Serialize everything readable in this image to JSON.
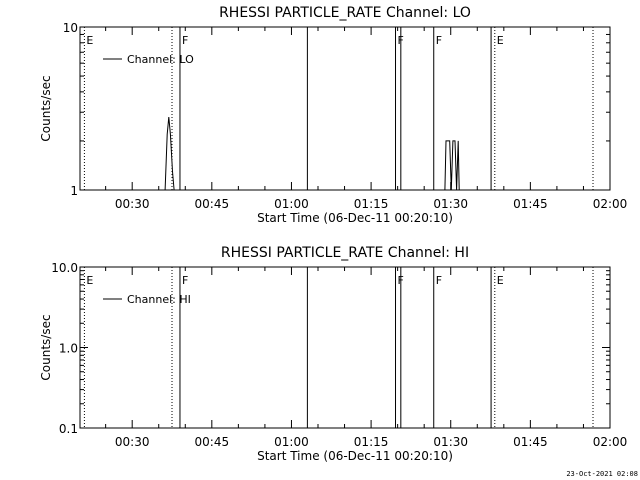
{
  "timestamp": "23-Oct-2021 02:08",
  "chart_data": [
    {
      "type": "line",
      "title": "RHESSI PARTICLE_RATE Channel: LO",
      "xlabel": "Start Time (06-Dec-11 00:20:10)",
      "ylabel": "Counts/sec",
      "yscale": "log",
      "ylim": [
        1,
        10
      ],
      "xlim_minutes": [
        20.17,
        120
      ],
      "ytick_values": [
        1,
        10
      ],
      "ytick_labels": [
        "1",
        "10"
      ],
      "xtick_values": [
        30,
        45,
        60,
        75,
        90,
        105,
        120
      ],
      "xtick_labels": [
        "00:30",
        "00:45",
        "01:00",
        "01:15",
        "01:30",
        "01:45",
        "02:00"
      ],
      "legend": {
        "label": "Channel: LO",
        "placement": "top-left"
      },
      "grid": false,
      "series": [
        {
          "name": "Channel: LO",
          "x": [
            36.2,
            36.6,
            36.9,
            37.2,
            37.6,
            37.9,
            88.9,
            89.1,
            89.8,
            90.1,
            90.4,
            90.8,
            91.1,
            91.4,
            91.6
          ],
          "y": [
            1,
            2.2,
            2.8,
            2.2,
            1.3,
            1,
            1,
            2,
            2,
            1,
            2,
            2,
            1,
            2,
            1
          ]
        }
      ],
      "event_lines": [
        {
          "x": 21.0,
          "style": "dotted",
          "label": "E"
        },
        {
          "x": 37.5,
          "style": "dotted",
          "label": ""
        },
        {
          "x": 39.0,
          "style": "solid",
          "label": "F"
        },
        {
          "x": 63.0,
          "style": "solid",
          "label": ""
        },
        {
          "x": 79.6,
          "style": "solid",
          "label": "F"
        },
        {
          "x": 80.6,
          "style": "solid",
          "label": ""
        },
        {
          "x": 86.8,
          "style": "solid",
          "label": "F"
        },
        {
          "x": 97.6,
          "style": "solid",
          "label": ""
        },
        {
          "x": 98.3,
          "style": "dotted",
          "label": "E"
        },
        {
          "x": 116.8,
          "style": "dotted",
          "label": ""
        }
      ]
    },
    {
      "type": "line",
      "title": "RHESSI PARTICLE_RATE Channel: HI",
      "xlabel": "Start Time (06-Dec-11 00:20:10)",
      "ylabel": "Counts/sec",
      "yscale": "log",
      "ylim": [
        0.1,
        10
      ],
      "xlim_minutes": [
        20.17,
        120
      ],
      "ytick_values": [
        0.1,
        1,
        10
      ],
      "ytick_labels": [
        "0.1",
        "1.0",
        "10.0"
      ],
      "xtick_values": [
        30,
        45,
        60,
        75,
        90,
        105,
        120
      ],
      "xtick_labels": [
        "00:30",
        "00:45",
        "01:00",
        "01:15",
        "01:30",
        "01:45",
        "02:00"
      ],
      "legend": {
        "label": "Channel: HI",
        "placement": "top-left"
      },
      "grid": false,
      "series": [
        {
          "name": "Channel: HI",
          "x": [],
          "y": []
        }
      ],
      "event_lines": [
        {
          "x": 21.0,
          "style": "dotted",
          "label": "E"
        },
        {
          "x": 37.5,
          "style": "dotted",
          "label": ""
        },
        {
          "x": 39.0,
          "style": "solid",
          "label": "F"
        },
        {
          "x": 63.0,
          "style": "solid",
          "label": ""
        },
        {
          "x": 79.6,
          "style": "solid",
          "label": "F"
        },
        {
          "x": 80.6,
          "style": "solid",
          "label": ""
        },
        {
          "x": 86.8,
          "style": "solid",
          "label": "F"
        },
        {
          "x": 97.6,
          "style": "solid",
          "label": ""
        },
        {
          "x": 98.3,
          "style": "dotted",
          "label": "E"
        },
        {
          "x": 116.8,
          "style": "dotted",
          "label": ""
        }
      ]
    }
  ]
}
